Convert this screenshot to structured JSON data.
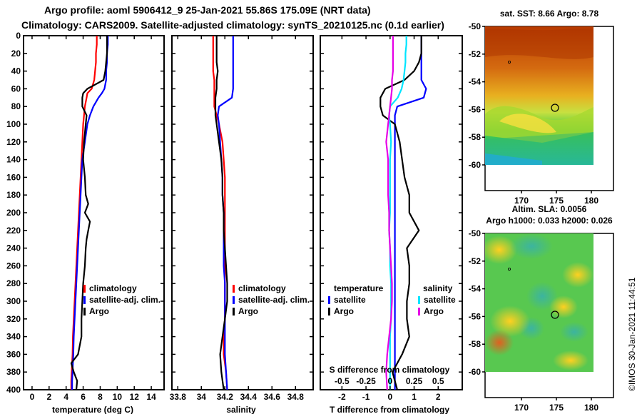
{
  "header": {
    "line1": "Argo profile: aoml 5906412_9 25-Jan-2021 55.86S 175.09E (NRT data)",
    "line2": "Climatology: CARS2009. Satellite-adjusted climatology: synTS_20210125.nc (0.1d earlier)"
  },
  "colors": {
    "climatology": "#ff0000",
    "satellite": "#0000ff",
    "argo": "#000000",
    "sal_satellite": "#00e5ff",
    "sal_argo": "#e600e6"
  },
  "legend": {
    "climatology": "climatology",
    "satellite_adj": "satellite-adj. clim.",
    "argo": "Argo",
    "temperature_head": "temperature",
    "salinity_head": "salinity",
    "satellite": "satellite"
  },
  "maps": {
    "sst_title": "sat. SST: 8.66 Argo: 8.78",
    "sla_title1": "Altim. SLA: 0.0056",
    "sla_title2": "Argo h1000: 0.033 h2000: 0.026",
    "lat_ticks": [
      "-50",
      "-52",
      "-54",
      "-56",
      "-58",
      "-60"
    ],
    "lon_ticks": [
      "170",
      "175",
      "180"
    ],
    "profile_lon": 175.09,
    "profile_lat": -55.86
  },
  "credit": "©IMOS 30-Jan-2021 11:44:51",
  "chart_data": [
    {
      "type": "line",
      "panel": "temperature",
      "xlabel": "temperature (deg C)",
      "ylabel": "depth",
      "xlim": [
        -1,
        15.5
      ],
      "ylim": [
        400,
        0
      ],
      "xticks": [
        "0",
        "2",
        "4",
        "6",
        "8",
        "10",
        "12",
        "14"
      ],
      "yticks": [
        "0",
        "20",
        "40",
        "60",
        "80",
        "100",
        "120",
        "140",
        "160",
        "180",
        "200",
        "220",
        "240",
        "260",
        "280",
        "300",
        "320",
        "340",
        "360",
        "380",
        "400"
      ],
      "depth": [
        0,
        10,
        20,
        30,
        40,
        50,
        60,
        65,
        70,
        80,
        90,
        100,
        120,
        140,
        160,
        180,
        190,
        200,
        210,
        220,
        230,
        240,
        260,
        280,
        300,
        320,
        340,
        360,
        370,
        380,
        390,
        400
      ],
      "series": [
        {
          "name": "climatology",
          "color": "#ff0000",
          "values": [
            7.6,
            7.6,
            7.5,
            7.5,
            7.4,
            7.3,
            7.0,
            6.5,
            6.4,
            6.2,
            6.1,
            6.0,
            5.9,
            5.8,
            5.7,
            5.6,
            5.55,
            5.5,
            5.45,
            5.4,
            5.35,
            5.3,
            5.2,
            5.1,
            5.0,
            4.9,
            4.8,
            4.75,
            4.7,
            4.65,
            4.6,
            4.6
          ]
        },
        {
          "name": "satellite-adj. clim.",
          "color": "#0000ff",
          "values": [
            8.9,
            8.9,
            8.8,
            8.8,
            8.7,
            8.7,
            8.5,
            8.2,
            7.8,
            7.2,
            6.8,
            6.5,
            6.2,
            5.9,
            5.8,
            5.7,
            5.65,
            5.6,
            5.55,
            5.5,
            5.45,
            5.4,
            5.3,
            5.2,
            5.1,
            5.0,
            4.9,
            4.85,
            4.8,
            4.75,
            4.7,
            4.7
          ]
        },
        {
          "name": "Argo",
          "color": "#000000",
          "values": [
            8.8,
            8.8,
            8.8,
            8.7,
            8.6,
            8.4,
            6.5,
            6.0,
            5.9,
            5.9,
            6.4,
            6.3,
            6.1,
            6.0,
            6.2,
            6.3,
            6.6,
            6.2,
            6.8,
            6.6,
            6.4,
            6.3,
            6.2,
            6.0,
            5.9,
            5.8,
            5.8,
            5.4,
            4.6,
            4.9,
            5.3,
            5.2
          ]
        }
      ]
    },
    {
      "type": "line",
      "panel": "salinity",
      "xlabel": "salinity",
      "ylabel": "depth",
      "xlim": [
        33.75,
        34.95
      ],
      "ylim": [
        400,
        0
      ],
      "xticks": [
        "33.8",
        "34",
        "34.2",
        "34.4",
        "34.6",
        "34.8"
      ],
      "depth": [
        0,
        10,
        20,
        30,
        40,
        50,
        60,
        70,
        80,
        90,
        100,
        120,
        140,
        160,
        180,
        200,
        220,
        240,
        260,
        280,
        300,
        320,
        340,
        360,
        380,
        400
      ],
      "series": [
        {
          "name": "climatology",
          "color": "#ff0000",
          "values": [
            34.1,
            34.1,
            34.1,
            34.1,
            34.1,
            34.11,
            34.11,
            34.11,
            34.11,
            34.13,
            34.15,
            34.18,
            34.19,
            34.2,
            34.2,
            34.2,
            34.2,
            34.2,
            34.2,
            34.2,
            34.2,
            34.2,
            34.19,
            34.19,
            34.21,
            34.22
          ]
        },
        {
          "name": "satellite-adj. clim.",
          "color": "#0000ff",
          "values": [
            34.27,
            34.27,
            34.27,
            34.27,
            34.27,
            34.27,
            34.27,
            34.26,
            34.15,
            34.14,
            34.15,
            34.16,
            34.17,
            34.18,
            34.18,
            34.19,
            34.19,
            34.19,
            34.19,
            34.2,
            34.2,
            34.2,
            34.2,
            34.2,
            34.21,
            34.22
          ]
        },
        {
          "name": "Argo",
          "color": "#000000",
          "values": [
            34.13,
            34.13,
            34.13,
            34.13,
            34.14,
            34.13,
            34.13,
            34.12,
            34.12,
            34.12,
            34.13,
            34.15,
            34.17,
            34.18,
            34.18,
            34.19,
            34.19,
            34.2,
            34.21,
            34.22,
            34.22,
            34.2,
            34.18,
            34.16,
            34.17,
            34.19
          ]
        }
      ]
    },
    {
      "type": "line",
      "panel": "difference",
      "xlabel": "T difference from climatology",
      "x2label": "S difference from climatology",
      "ylabel": "depth",
      "xlim": [
        -2.9,
        3.0
      ],
      "x2lim": [
        -0.725,
        0.75
      ],
      "ylim": [
        400,
        0
      ],
      "xticks": [
        "-2",
        "-1",
        "0",
        "1",
        "2"
      ],
      "x2ticks": [
        "-0.5",
        "-0.25",
        "0",
        "0.25",
        "0.5"
      ],
      "depth": [
        0,
        10,
        20,
        30,
        40,
        50,
        60,
        70,
        80,
        90,
        100,
        120,
        140,
        160,
        180,
        200,
        220,
        240,
        260,
        280,
        300,
        320,
        340,
        360,
        380,
        400
      ],
      "series": [
        {
          "name": "temperature satellite",
          "color": "#0000ff",
          "axis": "T",
          "values": [
            1.3,
            1.3,
            1.3,
            1.3,
            1.3,
            1.3,
            1.5,
            1.4,
            0.3,
            0.2,
            0.2,
            0.2,
            0.2,
            0.2,
            0.2,
            0.2,
            0.2,
            0.2,
            0.2,
            0.2,
            0.2,
            0.2,
            0.2,
            0.2,
            0.2,
            0.2
          ]
        },
        {
          "name": "temperature Argo",
          "color": "#000000",
          "axis": "T",
          "values": [
            1.3,
            1.3,
            1.3,
            1.2,
            1.0,
            0.6,
            -0.2,
            -0.4,
            -0.4,
            -0.3,
            0.2,
            0.4,
            0.5,
            0.6,
            0.8,
            0.8,
            1.2,
            0.7,
            0.8,
            0.8,
            0.7,
            0.7,
            0.8,
            0.5,
            0.1,
            0.3
          ]
        },
        {
          "name": "salinity satellite",
          "color": "#00e5ff",
          "axis": "S",
          "values": [
            0.17,
            0.17,
            0.16,
            0.16,
            0.15,
            0.14,
            0.12,
            0.08,
            0.0,
            -0.01,
            0.0,
            0.01,
            0.0,
            0.0,
            0.0,
            0.0,
            -0.01,
            0.0,
            0.0,
            0.01,
            0.01,
            0.01,
            0.0,
            0.0,
            0.0,
            0.0
          ]
        },
        {
          "name": "salinity Argo",
          "color": "#e600e6",
          "axis": "S",
          "values": [
            0.03,
            0.03,
            0.03,
            0.03,
            0.03,
            0.02,
            0.02,
            0.01,
            0.0,
            -0.01,
            -0.02,
            -0.04,
            -0.02,
            -0.02,
            -0.02,
            -0.01,
            -0.01,
            0.0,
            0.01,
            0.02,
            0.02,
            0.01,
            -0.01,
            -0.03,
            -0.04,
            -0.03
          ]
        }
      ]
    }
  ]
}
